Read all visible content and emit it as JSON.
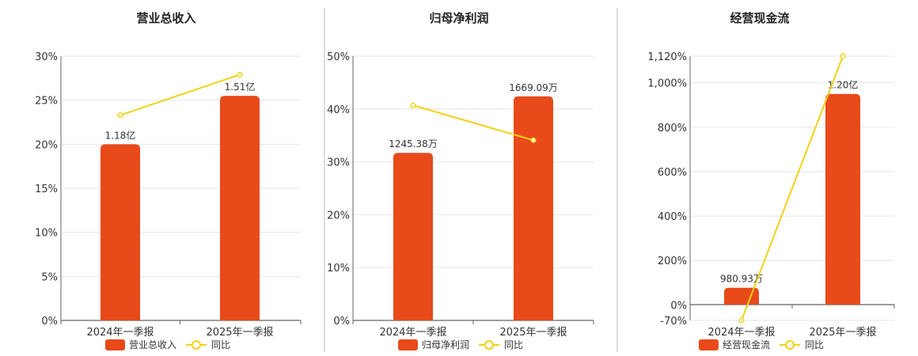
{
  "colors": {
    "bar": "#E84A1A",
    "line": "#F2D216",
    "grid": "#E6E6E6",
    "axis": "#666666",
    "divider": "#BBBBBB"
  },
  "chart_data": [
    {
      "type": "bar",
      "title": "营业总收入",
      "categories": [
        "2024年一季报",
        "2025年一季报"
      ],
      "series": [
        {
          "name": "营业总收入",
          "type": "bar",
          "values": [
            20,
            25.5
          ],
          "value_labels": [
            "1.18亿",
            "1.51亿"
          ]
        },
        {
          "name": "同比",
          "type": "line",
          "values": [
            23.3,
            27.9
          ]
        }
      ],
      "yticks": [
        "30%",
        "25%",
        "20%",
        "15%",
        "10%",
        "5%",
        "0%"
      ],
      "ylim": [
        0,
        30
      ],
      "grid": true,
      "legend": "bottom"
    },
    {
      "type": "bar",
      "title": "归母净利润",
      "categories": [
        "2024年一季报",
        "2025年一季报"
      ],
      "series": [
        {
          "name": "归母净利润",
          "type": "bar",
          "values": [
            31.7,
            42.4
          ],
          "value_labels": [
            "1245.38万",
            "1669.09万"
          ]
        },
        {
          "name": "同比",
          "type": "line",
          "values": [
            40.7,
            34.1
          ]
        }
      ],
      "yticks": [
        "50%",
        "40%",
        "30%",
        "20%",
        "10%",
        "0%"
      ],
      "ylim": [
        0,
        50
      ],
      "grid": true,
      "legend": "bottom"
    },
    {
      "type": "bar",
      "title": "经营现金流",
      "categories": [
        "2024年一季报",
        "2025年一季报"
      ],
      "series": [
        {
          "name": "经营现金流",
          "type": "bar",
          "values": [
            77,
            950
          ],
          "value_labels": [
            "980.93万",
            "1.20亿"
          ]
        },
        {
          "name": "同比",
          "type": "line",
          "values": [
            -70,
            1120
          ]
        }
      ],
      "yticks": [
        "1,120%",
        "1,000%",
        "800%",
        "600%",
        "400%",
        "200%",
        "0%",
        "-70%"
      ],
      "ylim": [
        -70,
        1120
      ],
      "grid": true,
      "legend": "bottom"
    }
  ]
}
